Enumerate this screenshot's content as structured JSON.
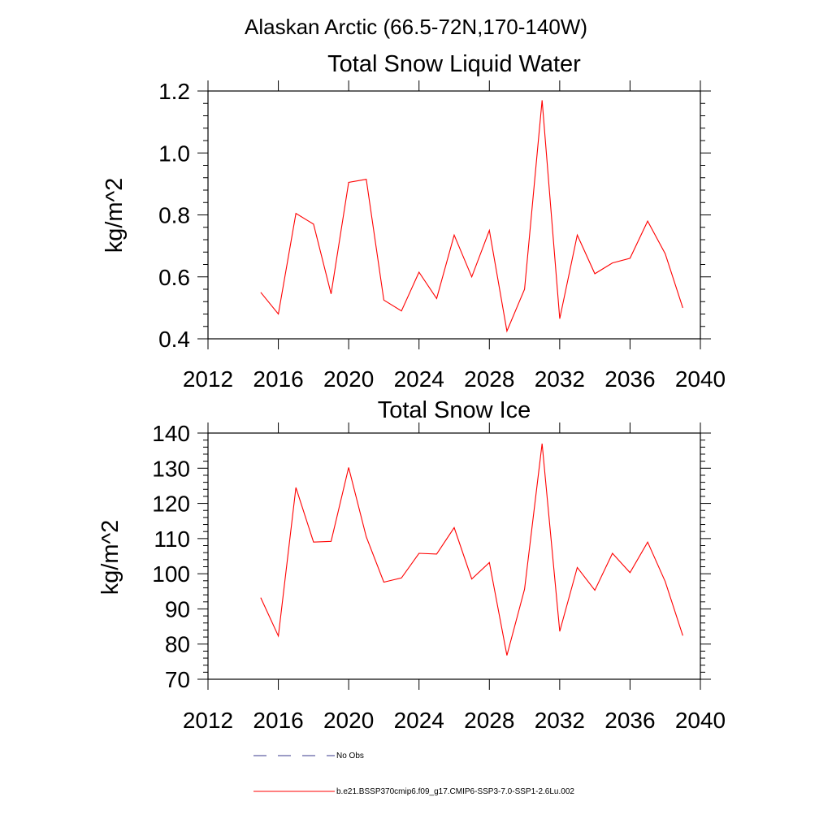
{
  "header": {
    "region_title": "Alaskan Arctic (66.5-72N,170-140W)"
  },
  "chart_data": [
    {
      "type": "line",
      "title": "Total Snow Liquid Water",
      "xlabel": "",
      "ylabel": "kg/m^2",
      "xlim": [
        2012,
        2040
      ],
      "ylim": [
        0.4,
        1.2
      ],
      "x_ticks": [
        "2012",
        "2016",
        "2020",
        "2024",
        "2028",
        "2032",
        "2036",
        "2040"
      ],
      "y_ticks": [
        "0.4",
        "0.6",
        "0.8",
        "1.0",
        "1.2"
      ],
      "grid": false,
      "series": [
        {
          "name": "b.e21.BSSP370cmip6.f09_g17.CMIP6-SSP3-7.0-SSP1-2.6Lu.002",
          "color": "#ff0000",
          "x": [
            2015,
            2016,
            2017,
            2018,
            2019,
            2020,
            2021,
            2022,
            2023,
            2024,
            2025,
            2026,
            2027,
            2028,
            2029,
            2030,
            2031,
            2032,
            2033,
            2034,
            2035,
            2036,
            2037,
            2038,
            2039
          ],
          "values": [
            0.55,
            0.48,
            0.805,
            0.77,
            0.545,
            0.905,
            0.915,
            0.525,
            0.49,
            0.615,
            0.53,
            0.735,
            0.6,
            0.75,
            0.425,
            0.56,
            1.17,
            0.465,
            0.735,
            0.61,
            0.645,
            0.66,
            0.78,
            0.675,
            0.5
          ]
        }
      ]
    },
    {
      "type": "line",
      "title": "Total Snow Ice",
      "xlabel": "",
      "ylabel": "kg/m^2",
      "xlim": [
        2012,
        2040
      ],
      "ylim": [
        70,
        140
      ],
      "x_ticks": [
        "2012",
        "2016",
        "2020",
        "2024",
        "2028",
        "2032",
        "2036",
        "2040"
      ],
      "y_ticks": [
        "70",
        "80",
        "90",
        "100",
        "110",
        "120",
        "130",
        "140"
      ],
      "grid": false,
      "series": [
        {
          "name": "b.e21.BSSP370cmip6.f09_g17.CMIP6-SSP3-7.0-SSP1-2.6Lu.002",
          "color": "#ff0000",
          "x": [
            2015,
            2016,
            2017,
            2018,
            2019,
            2020,
            2021,
            2022,
            2023,
            2024,
            2025,
            2026,
            2027,
            2028,
            2029,
            2030,
            2031,
            2032,
            2033,
            2034,
            2035,
            2036,
            2037,
            2038,
            2039
          ],
          "values": [
            93.2,
            82.3,
            124.5,
            109.0,
            109.2,
            130.2,
            110.5,
            97.6,
            98.8,
            105.8,
            105.6,
            113.1,
            98.5,
            103.2,
            76.8,
            95.6,
            137.0,
            83.6,
            101.8,
            95.3,
            105.8,
            100.3,
            109.0,
            97.8,
            82.4
          ]
        }
      ]
    }
  ],
  "legend": {
    "placement": "bottom-left",
    "items": [
      {
        "label": "No Obs",
        "color": "#3a3a8c",
        "style": "dashed"
      },
      {
        "label": "b.e21.BSSP370cmip6.f09_g17.CMIP6-SSP3-7.0-SSP1-2.6Lu.002",
        "color": "#ff0000",
        "style": "solid"
      }
    ]
  }
}
